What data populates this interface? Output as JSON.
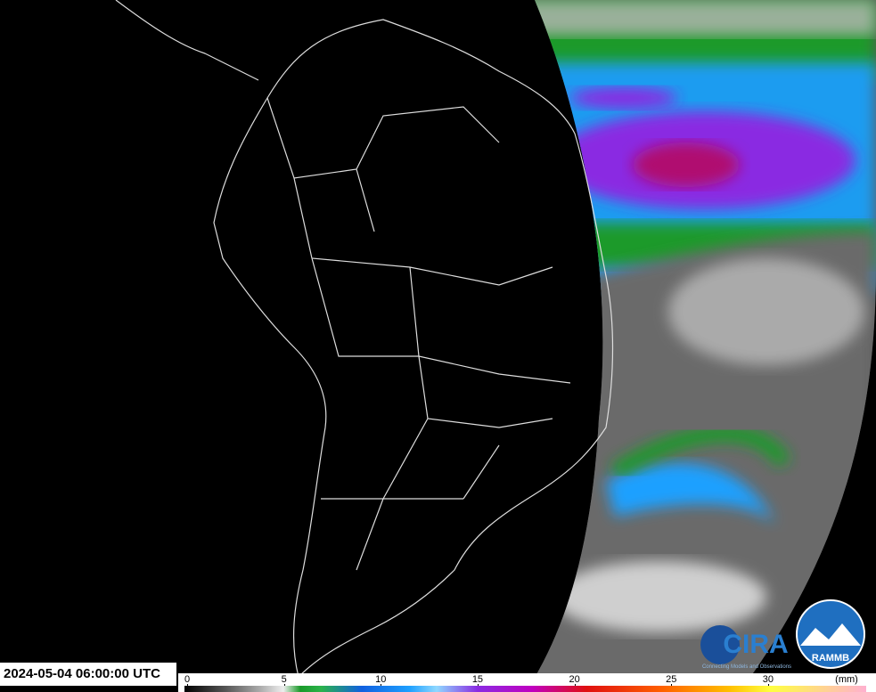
{
  "timestamp": "2024-05-04 06:00:00 UTC",
  "colorbar": {
    "ticks": [
      0,
      5,
      10,
      15,
      20,
      25,
      30
    ],
    "unit": "(mm)"
  },
  "logos": {
    "cira": "CIRA",
    "cira_tagline": "Connecting Models and Observations",
    "rammb": "RAMMB"
  }
}
